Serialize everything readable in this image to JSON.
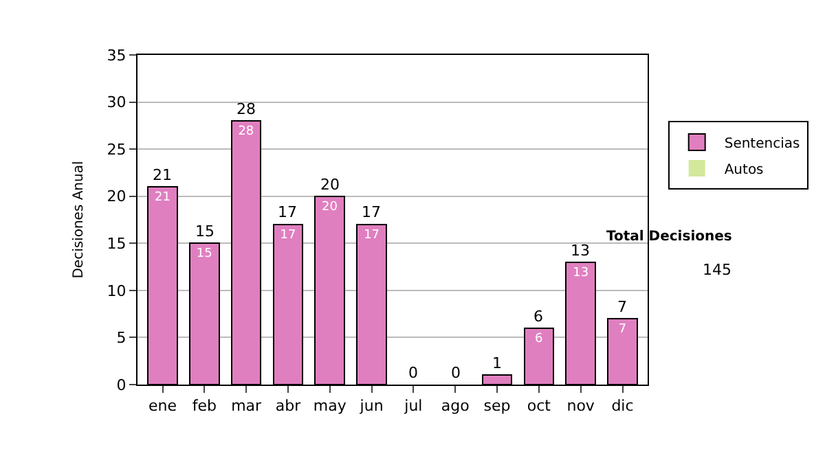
{
  "chart_data": {
    "type": "bar",
    "stacked": true,
    "ylabel": "Decisiones Anual",
    "categories": [
      "ene",
      "feb",
      "mar",
      "abr",
      "may",
      "jun",
      "jul",
      "ago",
      "sep",
      "oct",
      "nov",
      "dic"
    ],
    "series": [
      {
        "name": "Sentencias",
        "color": "#e07fc0",
        "values": [
          21,
          15,
          28,
          17,
          20,
          17,
          0,
          0,
          1,
          6,
          13,
          7
        ],
        "value_labels": [
          "21",
          "15",
          "28",
          "17",
          "20",
          "17",
          null,
          null,
          null,
          "6",
          "13",
          "7"
        ]
      },
      {
        "name": "Autos",
        "color": "#d4e89c",
        "values": [
          0,
          0,
          0,
          0,
          0,
          0,
          0,
          0,
          0,
          0,
          0,
          0
        ]
      }
    ],
    "totals": [
      "21",
      "15",
      "28",
      "17",
      "20",
      "17",
      "0",
      "0",
      "1",
      "6",
      "13",
      "7"
    ],
    "ylim": [
      0,
      35
    ],
    "yticks": [
      0,
      5,
      10,
      15,
      20,
      25,
      30,
      35
    ],
    "grid": "y",
    "legend": "right",
    "annotations": [
      "Total Decisiones",
      "145"
    ]
  }
}
